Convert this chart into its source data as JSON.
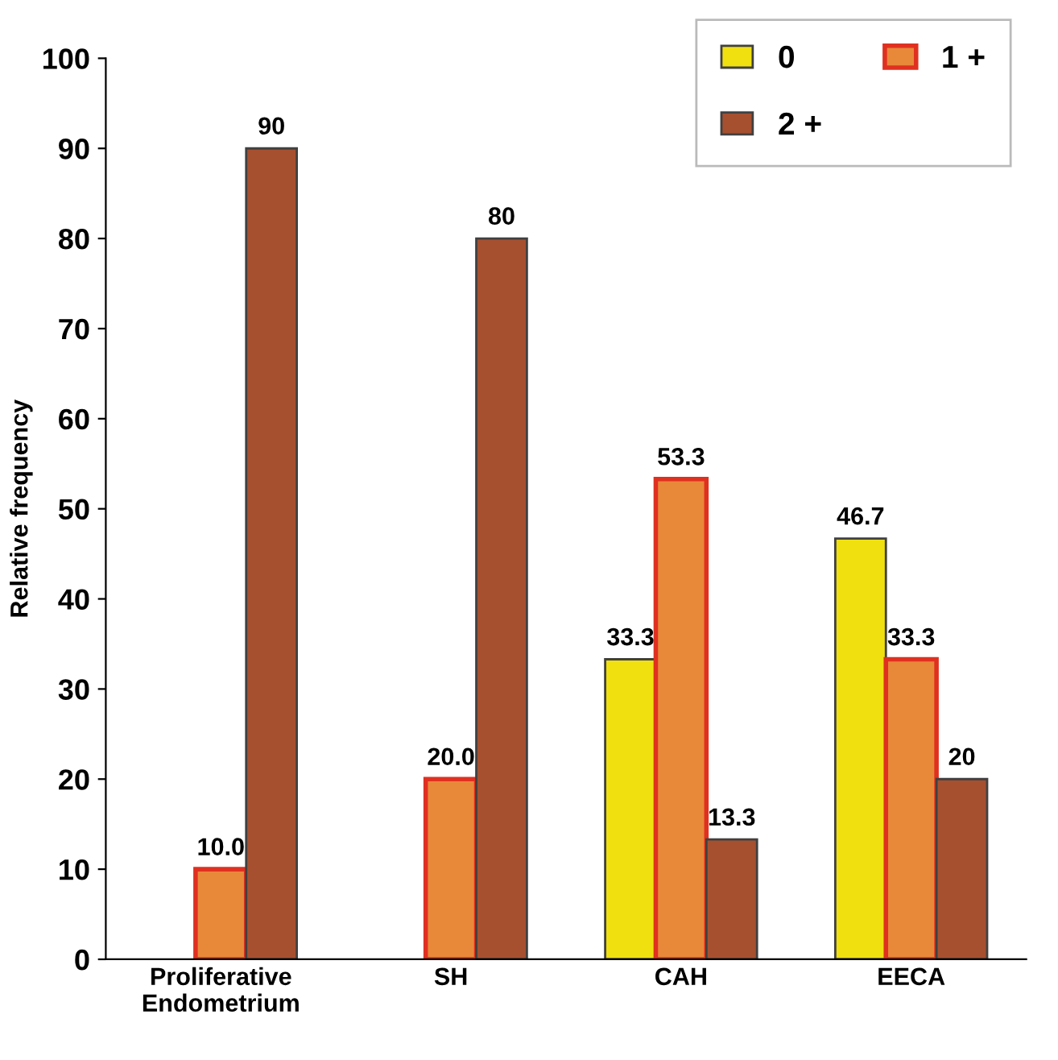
{
  "chart_data": {
    "type": "bar",
    "ylabel": "Relative frequency",
    "categories": [
      "Proliferative\nEndometrium",
      "SH",
      "CAH",
      "EECA"
    ],
    "series": [
      {
        "name": "0",
        "color": "#f0e010",
        "values": [
          null,
          null,
          33.3,
          46.7
        ],
        "value_labels": [
          null,
          null,
          "33.3",
          "46.7"
        ]
      },
      {
        "name": "1 +",
        "color": "#e8893a",
        "values": [
          10.0,
          20.0,
          53.3,
          33.3
        ],
        "value_labels": [
          "10.0",
          "20.0",
          "53.3",
          "33.3"
        ]
      },
      {
        "name": "2 +",
        "color": "#a65030",
        "values": [
          90,
          80,
          13.3,
          20
        ],
        "value_labels": [
          "90",
          "80",
          "13.3",
          "20"
        ]
      }
    ],
    "ylim": [
      0,
      100
    ],
    "yticks": [
      0,
      10,
      20,
      30,
      40,
      50,
      60,
      70,
      80,
      90,
      100
    ],
    "grid": false,
    "legend": "top right"
  }
}
